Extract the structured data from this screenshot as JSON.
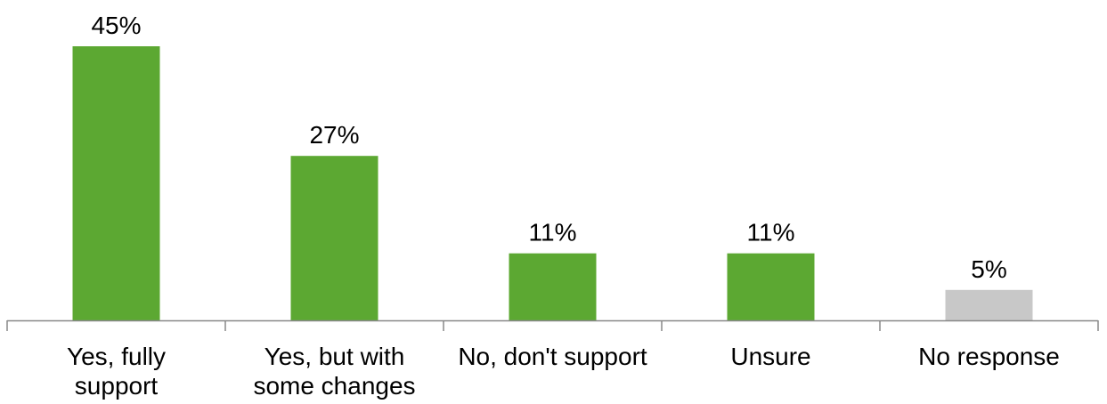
{
  "chart_data": {
    "type": "bar",
    "title": "",
    "xlabel": "",
    "ylabel": "",
    "ylim": [
      0,
      45
    ],
    "grid": false,
    "legend": "none",
    "categories": [
      [
        "Yes, fully",
        "support"
      ],
      [
        "Yes, but with",
        "some changes"
      ],
      [
        "No, don't support"
      ],
      [
        "Unsure"
      ],
      [
        "No response"
      ]
    ],
    "values": [
      45,
      27,
      11,
      11,
      5
    ],
    "value_labels": [
      "45%",
      "27%",
      "11%",
      "11%",
      "5%"
    ],
    "colors": [
      "#5ca832",
      "#5ca832",
      "#5ca832",
      "#5ca832",
      "#c8c8c8"
    ],
    "axis_color": "#888888"
  }
}
